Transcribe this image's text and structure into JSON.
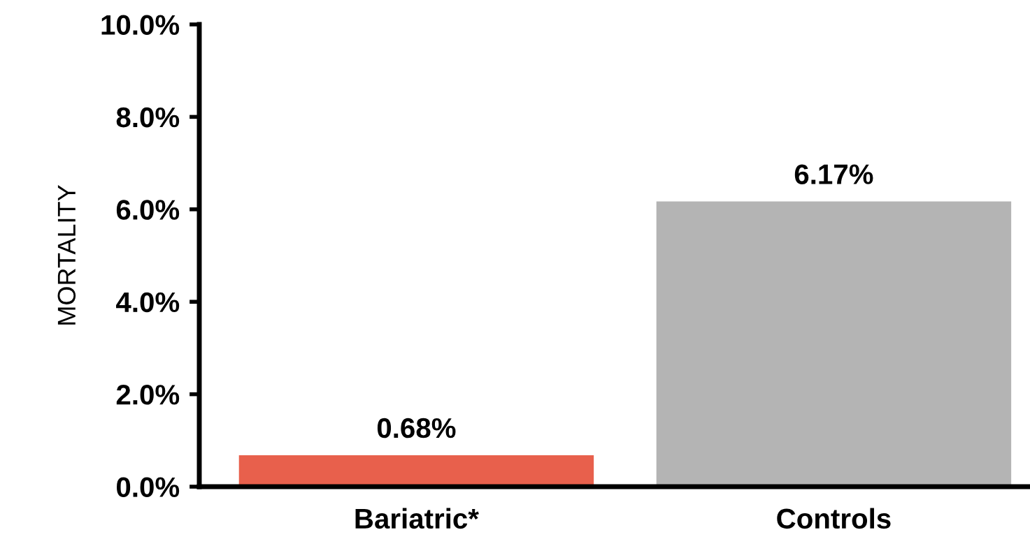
{
  "chart_data": {
    "type": "bar",
    "ylabel": "MORTALITY",
    "categories": [
      "Bariatric*",
      "Controls"
    ],
    "values": [
      0.68,
      6.17
    ],
    "colors": [
      "#e8604c",
      "#b4b4b4"
    ],
    "value_labels": [
      "0.68%",
      "6.17%"
    ],
    "ylim": [
      0,
      10
    ],
    "yticks": [
      {
        "value": 0,
        "label": "0.0%"
      },
      {
        "value": 2,
        "label": "2.0%"
      },
      {
        "value": 4,
        "label": "4.0%"
      },
      {
        "value": 6,
        "label": "6.0%"
      },
      {
        "value": 8,
        "label": "8.0%"
      },
      {
        "value": 10,
        "label": "10.0%"
      }
    ],
    "grid": false,
    "legend": false
  }
}
